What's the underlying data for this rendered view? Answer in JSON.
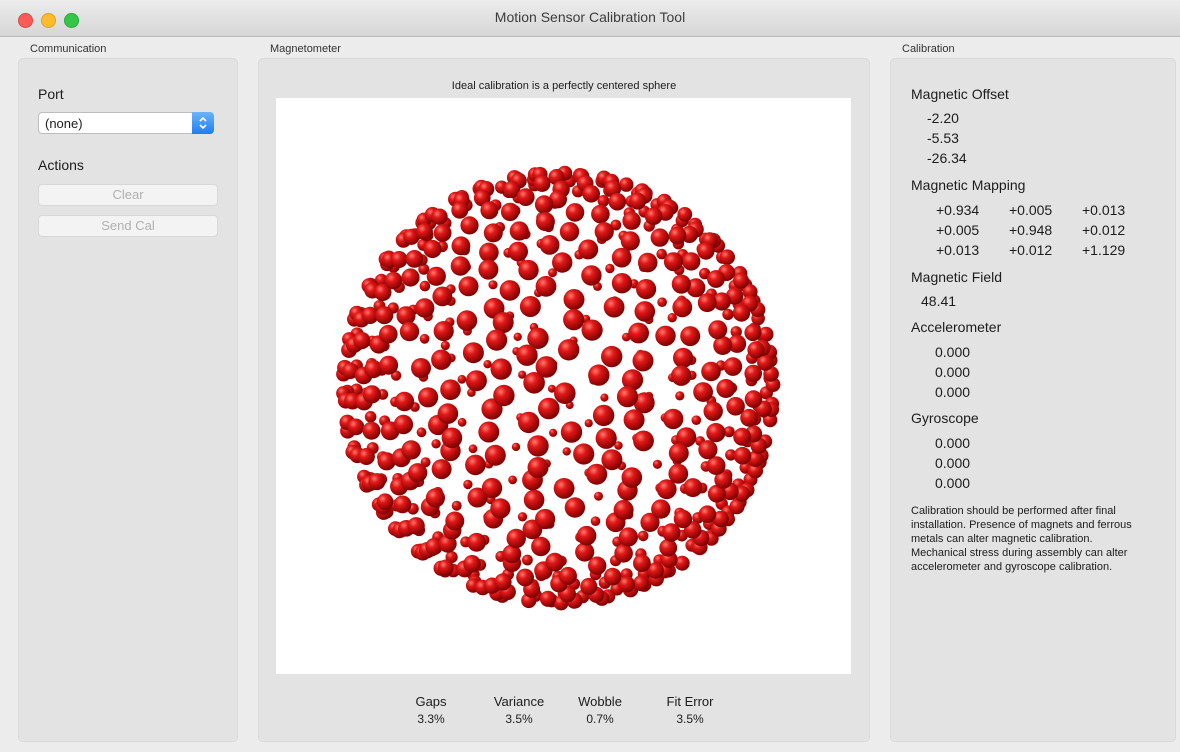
{
  "window": {
    "title": "Motion Sensor Calibration Tool"
  },
  "communication": {
    "group_label": "Communication",
    "port_label": "Port",
    "port_value": "(none)",
    "actions_label": "Actions",
    "clear_label": "Clear",
    "send_cal_label": "Send Cal"
  },
  "magnetometer": {
    "group_label": "Magnetometer",
    "caption": "Ideal calibration is a perfectly centered sphere",
    "point_color": "#d01010",
    "stats": [
      {
        "label": "Gaps",
        "value": "3.3%"
      },
      {
        "label": "Variance",
        "value": "3.5%"
      },
      {
        "label": "Wobble",
        "value": "0.7%"
      },
      {
        "label": "Fit Error",
        "value": "3.5%"
      }
    ]
  },
  "calibration": {
    "group_label": "Calibration",
    "offset_label": "Magnetic Offset",
    "offset": [
      "-2.20",
      "-5.53",
      "-26.34"
    ],
    "mapping_label": "Magnetic Mapping",
    "mapping": [
      [
        "+0.934",
        "+0.005",
        "+0.013"
      ],
      [
        "+0.005",
        "+0.948",
        "+0.012"
      ],
      [
        "+0.013",
        "+0.012",
        "+1.129"
      ]
    ],
    "field_label": "Magnetic Field",
    "field": "48.41",
    "accel_label": "Accelerometer",
    "accel": [
      "0.000",
      "0.000",
      "0.000"
    ],
    "gyro_label": "Gyroscope",
    "gyro": [
      "0.000",
      "0.000",
      "0.000"
    ],
    "note": "Calibration should be performed after final installation.  Presence of magnets and ferrous metals can alter magnetic calibration. Mechanical stress during assembly can alter accelerometer and gyroscope calibration."
  }
}
